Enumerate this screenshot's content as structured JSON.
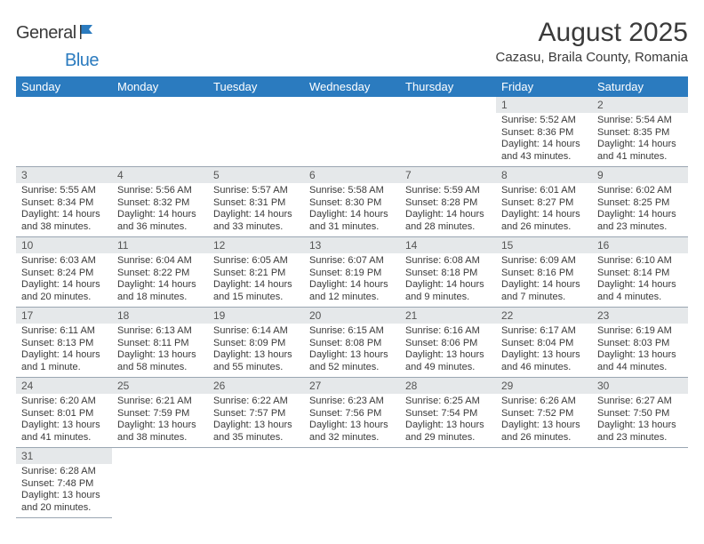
{
  "brand": {
    "part1": "General",
    "part2": "Blue",
    "icon_color": "#2b7bbf"
  },
  "header": {
    "title": "August 2025",
    "location": "Cazasu, Braila County, Romania"
  },
  "calendar": {
    "header_bg": "#2b7bbf",
    "header_fg": "#ffffff",
    "daynum_bg": "#e5e8ea",
    "border_color": "#9aa6b2",
    "day_names": [
      "Sunday",
      "Monday",
      "Tuesday",
      "Wednesday",
      "Thursday",
      "Friday",
      "Saturday"
    ],
    "weeks": [
      [
        null,
        null,
        null,
        null,
        null,
        {
          "n": "1",
          "sr": "5:52 AM",
          "ss": "8:36 PM",
          "dl": "14 hours and 43 minutes."
        },
        {
          "n": "2",
          "sr": "5:54 AM",
          "ss": "8:35 PM",
          "dl": "14 hours and 41 minutes."
        }
      ],
      [
        {
          "n": "3",
          "sr": "5:55 AM",
          "ss": "8:34 PM",
          "dl": "14 hours and 38 minutes."
        },
        {
          "n": "4",
          "sr": "5:56 AM",
          "ss": "8:32 PM",
          "dl": "14 hours and 36 minutes."
        },
        {
          "n": "5",
          "sr": "5:57 AM",
          "ss": "8:31 PM",
          "dl": "14 hours and 33 minutes."
        },
        {
          "n": "6",
          "sr": "5:58 AM",
          "ss": "8:30 PM",
          "dl": "14 hours and 31 minutes."
        },
        {
          "n": "7",
          "sr": "5:59 AM",
          "ss": "8:28 PM",
          "dl": "14 hours and 28 minutes."
        },
        {
          "n": "8",
          "sr": "6:01 AM",
          "ss": "8:27 PM",
          "dl": "14 hours and 26 minutes."
        },
        {
          "n": "9",
          "sr": "6:02 AM",
          "ss": "8:25 PM",
          "dl": "14 hours and 23 minutes."
        }
      ],
      [
        {
          "n": "10",
          "sr": "6:03 AM",
          "ss": "8:24 PM",
          "dl": "14 hours and 20 minutes."
        },
        {
          "n": "11",
          "sr": "6:04 AM",
          "ss": "8:22 PM",
          "dl": "14 hours and 18 minutes."
        },
        {
          "n": "12",
          "sr": "6:05 AM",
          "ss": "8:21 PM",
          "dl": "14 hours and 15 minutes."
        },
        {
          "n": "13",
          "sr": "6:07 AM",
          "ss": "8:19 PM",
          "dl": "14 hours and 12 minutes."
        },
        {
          "n": "14",
          "sr": "6:08 AM",
          "ss": "8:18 PM",
          "dl": "14 hours and 9 minutes."
        },
        {
          "n": "15",
          "sr": "6:09 AM",
          "ss": "8:16 PM",
          "dl": "14 hours and 7 minutes."
        },
        {
          "n": "16",
          "sr": "6:10 AM",
          "ss": "8:14 PM",
          "dl": "14 hours and 4 minutes."
        }
      ],
      [
        {
          "n": "17",
          "sr": "6:11 AM",
          "ss": "8:13 PM",
          "dl": "14 hours and 1 minute."
        },
        {
          "n": "18",
          "sr": "6:13 AM",
          "ss": "8:11 PM",
          "dl": "13 hours and 58 minutes."
        },
        {
          "n": "19",
          "sr": "6:14 AM",
          "ss": "8:09 PM",
          "dl": "13 hours and 55 minutes."
        },
        {
          "n": "20",
          "sr": "6:15 AM",
          "ss": "8:08 PM",
          "dl": "13 hours and 52 minutes."
        },
        {
          "n": "21",
          "sr": "6:16 AM",
          "ss": "8:06 PM",
          "dl": "13 hours and 49 minutes."
        },
        {
          "n": "22",
          "sr": "6:17 AM",
          "ss": "8:04 PM",
          "dl": "13 hours and 46 minutes."
        },
        {
          "n": "23",
          "sr": "6:19 AM",
          "ss": "8:03 PM",
          "dl": "13 hours and 44 minutes."
        }
      ],
      [
        {
          "n": "24",
          "sr": "6:20 AM",
          "ss": "8:01 PM",
          "dl": "13 hours and 41 minutes."
        },
        {
          "n": "25",
          "sr": "6:21 AM",
          "ss": "7:59 PM",
          "dl": "13 hours and 38 minutes."
        },
        {
          "n": "26",
          "sr": "6:22 AM",
          "ss": "7:57 PM",
          "dl": "13 hours and 35 minutes."
        },
        {
          "n": "27",
          "sr": "6:23 AM",
          "ss": "7:56 PM",
          "dl": "13 hours and 32 minutes."
        },
        {
          "n": "28",
          "sr": "6:25 AM",
          "ss": "7:54 PM",
          "dl": "13 hours and 29 minutes."
        },
        {
          "n": "29",
          "sr": "6:26 AM",
          "ss": "7:52 PM",
          "dl": "13 hours and 26 minutes."
        },
        {
          "n": "30",
          "sr": "6:27 AM",
          "ss": "7:50 PM",
          "dl": "13 hours and 23 minutes."
        }
      ],
      [
        {
          "n": "31",
          "sr": "6:28 AM",
          "ss": "7:48 PM",
          "dl": "13 hours and 20 minutes."
        },
        null,
        null,
        null,
        null,
        null,
        null
      ]
    ],
    "labels": {
      "sunrise": "Sunrise: ",
      "sunset": "Sunset: ",
      "daylight": "Daylight: "
    }
  }
}
